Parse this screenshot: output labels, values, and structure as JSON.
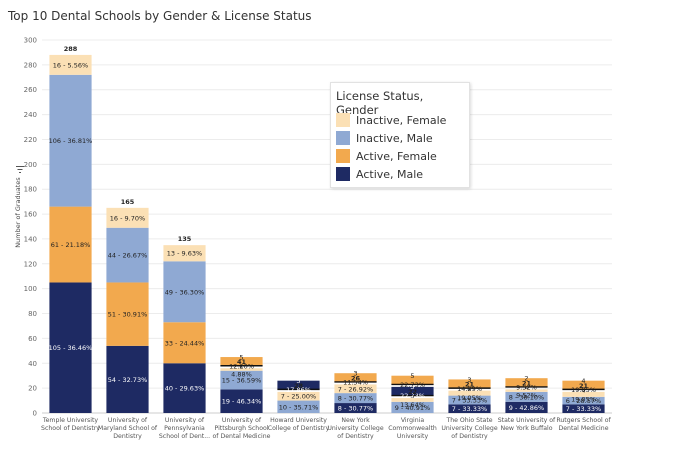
{
  "title": "Top 10 Dental Schools by Gender & License Status",
  "chart_data": {
    "type": "bar",
    "stacked": true,
    "title": "Top 10 Dental Schools by Gender & License Status",
    "ylabel": "Number of Graduates",
    "xlabel": "",
    "ylim": [
      0,
      300
    ],
    "yticks": [
      0,
      20,
      40,
      60,
      80,
      100,
      120,
      140,
      160,
      180,
      200,
      220,
      240,
      260,
      280,
      300
    ],
    "legend_title": "License Status, Gender",
    "legend_position": "top-right",
    "legend": [
      {
        "name": "Inactive, Female",
        "color": "#fbe0b5"
      },
      {
        "name": "Inactive, Male",
        "color": "#8fa9d3"
      },
      {
        "name": "Active, Female",
        "color": "#f2a94e"
      },
      {
        "name": "Active, Male",
        "color": "#1e2a63"
      }
    ],
    "categories": [
      {
        "name": "Temple University School of Dentistry",
        "label_lines": [
          "Temple University",
          "School of Dentistry"
        ],
        "total": "288",
        "layout": "stacked",
        "segments": [
          {
            "series": "Active, Male",
            "value": 105,
            "label": "105 - 36.46%"
          },
          {
            "series": "Active, Female",
            "value": 61,
            "label": "61 - 21.18%"
          },
          {
            "series": "Inactive, Male",
            "value": 106,
            "label": "106 - 36.81%"
          },
          {
            "series": "Inactive, Female",
            "value": 16,
            "label": "16 - 5.56%"
          }
        ]
      },
      {
        "name": "University of Maryland School of Dentistry",
        "label_lines": [
          "University of",
          "Maryland School of",
          "Dentistry"
        ],
        "total": "165",
        "layout": "stacked",
        "segments": [
          {
            "series": "Active, Male",
            "value": 54,
            "label": "54 - 32.73%"
          },
          {
            "series": "Active, Female",
            "value": 51,
            "label": "51 - 30.91%"
          },
          {
            "series": "Inactive, Male",
            "value": 44,
            "label": "44 - 26.67%"
          },
          {
            "series": "Inactive, Female",
            "value": 16,
            "label": "16 - 9.70%"
          }
        ]
      },
      {
        "name": "University of Pennsylvania School of Dent...",
        "label_lines": [
          "University of",
          "Pennsylvania",
          "School of Dent..."
        ],
        "total": "135",
        "layout": "stacked",
        "segments": [
          {
            "series": "Active, Male",
            "value": 40,
            "label": "40 - 29.63%"
          },
          {
            "series": "Active, Female",
            "value": 33,
            "label": "33 - 24.44%"
          },
          {
            "series": "Inactive, Male",
            "value": 49,
            "label": "49 - 36.30%"
          },
          {
            "series": "Inactive, Female",
            "value": 13,
            "label": "13 - 9.63%"
          }
        ]
      },
      {
        "name": "University of Pittsburgh School of Dental Medicine",
        "label_lines": [
          "University of",
          "Pittsburgh School",
          "of Dental Medicine"
        ],
        "total": "41",
        "layout": "split",
        "segments": [
          {
            "series": "Active, Male",
            "value": 19,
            "label": "19 - 46.34%"
          },
          {
            "series": "Active, Female",
            "value": 5,
            "label": "5 12.20%"
          },
          {
            "series": "Inactive, Male",
            "value": 15,
            "label": "15 - 36.59%"
          },
          {
            "series": "Inactive, Female",
            "value": 2,
            "label": "2 4.88%"
          }
        ]
      },
      {
        "name": "Howard University College of Dentistry",
        "label_lines": [
          "Howard University",
          "College of Dentistry"
        ],
        "total": "28",
        "layout": "split",
        "segments": [
          {
            "series": "Active, Male",
            "value": 5,
            "label": "5 17.86%"
          },
          {
            "series": "Active, Female",
            "value": 6,
            "label": "6 - 21.43%"
          },
          {
            "series": "Inactive, Male",
            "value": 10,
            "label": "10 - 35.71%"
          },
          {
            "series": "Inactive, Female",
            "value": 7,
            "label": "7 - 25.00%"
          }
        ]
      },
      {
        "name": "New York University College of Dentistry",
        "label_lines": [
          "New York",
          "University College",
          "of Dentistry"
        ],
        "total": "26",
        "layout": "split",
        "segments": [
          {
            "series": "Active, Male",
            "value": 8,
            "label": "8 - 30.77%"
          },
          {
            "series": "Active, Female",
            "value": 3,
            "label": "3 11.54%"
          },
          {
            "series": "Inactive, Male",
            "value": 8,
            "label": "8 - 30.77%"
          },
          {
            "series": "Inactive, Female",
            "value": 7,
            "label": "7 - 26.92%"
          }
        ]
      },
      {
        "name": "Virginia Commonwealth University",
        "label_lines": [
          "Virginia",
          "Commonwealth",
          "University"
        ],
        "total": "22",
        "layout": "split",
        "segments": [
          {
            "series": "Active, Male",
            "value": 5,
            "label": "5 22.73%"
          },
          {
            "series": "Active, Female",
            "value": 5,
            "label": "5 22.73%"
          },
          {
            "series": "Inactive, Male",
            "value": 9,
            "label": "9 - 40.91%"
          },
          {
            "series": "Inactive, Female",
            "value": 3,
            "label": "3 13.64%"
          }
        ]
      },
      {
        "name": "The Ohio State University College of Dentistry",
        "label_lines": [
          "The Ohio State",
          "University College",
          "of Dentistry"
        ],
        "total": "21",
        "layout": "split",
        "segments": [
          {
            "series": "Active, Male",
            "value": 7,
            "label": "7 - 33.33%"
          },
          {
            "series": "Active, Female",
            "value": 3,
            "label": "3 14.29%"
          },
          {
            "series": "Inactive, Male",
            "value": 7,
            "label": "7 - 33.33%"
          },
          {
            "series": "Inactive, Female",
            "value": 4,
            "label": "4 19.05%"
          }
        ]
      },
      {
        "name": "State University of New York Buffalo",
        "label_lines": [
          "State University of",
          "New York Buffalo"
        ],
        "total": "21",
        "layout": "split",
        "segments": [
          {
            "series": "Active, Male",
            "value": 9,
            "label": "9 - 42.86%"
          },
          {
            "series": "Active, Female",
            "value": 2,
            "label": "2 9.52%"
          },
          {
            "series": "Inactive, Male",
            "value": 8,
            "label": "8 - 38.10%"
          },
          {
            "series": "Inactive, Female",
            "value": 2,
            "label": "2 9.52%"
          }
        ]
      },
      {
        "name": "Rutgers School of Dental Medicine",
        "label_lines": [
          "Rutgers School of",
          "Dental Medicine"
        ],
        "total": "21",
        "layout": "split",
        "segments": [
          {
            "series": "Active, Male",
            "value": 7,
            "label": "7 - 33.33%"
          },
          {
            "series": "Active, Female",
            "value": 4,
            "label": "4 19.05%"
          },
          {
            "series": "Inactive, Male",
            "value": 6,
            "label": "6 - 28.57%"
          },
          {
            "series": "Inactive, Female",
            "value": 4,
            "label": "4 19.05%"
          }
        ]
      }
    ]
  }
}
